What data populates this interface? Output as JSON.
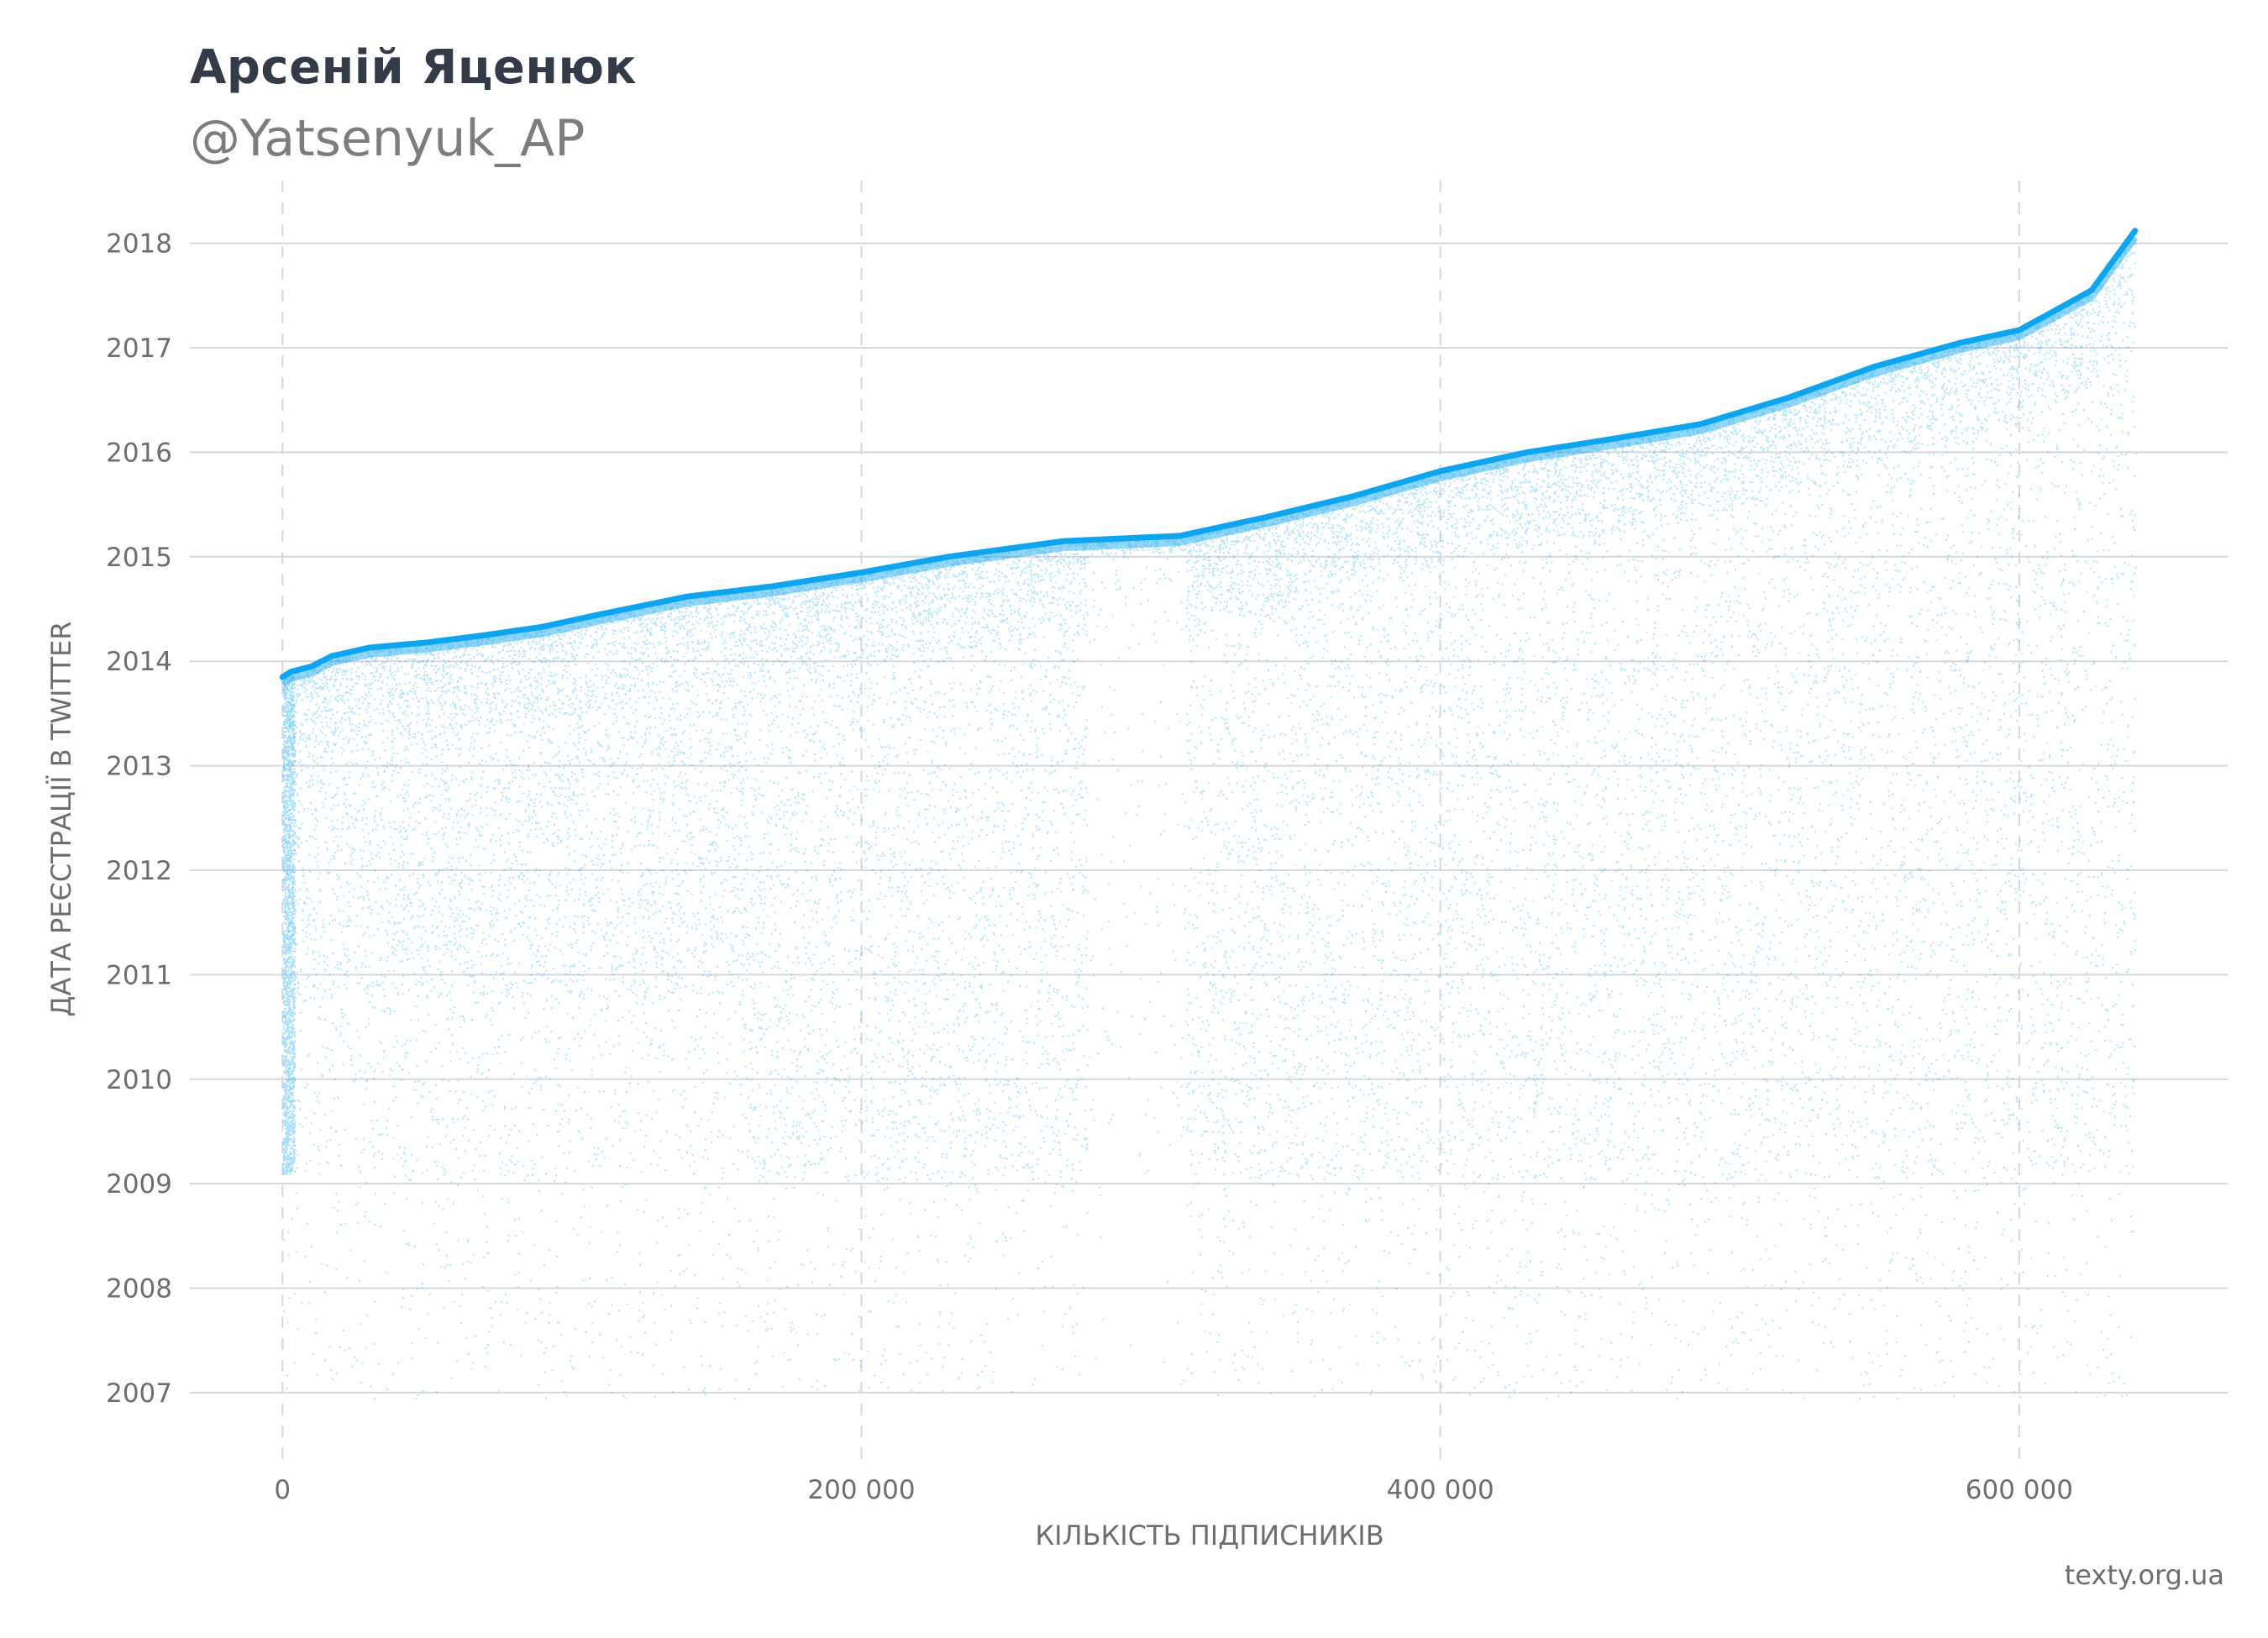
{
  "header": {
    "title": "Арсеній Яценюк",
    "handle": "@Yatsenyuk_AP"
  },
  "footer": {
    "source": "texty.org.ua"
  },
  "colors": {
    "points": "#0ea5f0",
    "title": "#333b48",
    "subtitle": "#7d7d7d",
    "text": "#6e6e6e",
    "grid": "#d5d8dc"
  },
  "chart_data": {
    "type": "scatter",
    "title": "Арсеній Яценюк",
    "subtitle": "@Yatsenyuk_AP",
    "xlabel": "КІЛЬКІСТЬ ПІДПИСНИКІВ",
    "ylabel": "ДАТА РЕЄСТРАЦІЇ В TWITTER",
    "x_ticks": [
      {
        "value": 0,
        "label": "0"
      },
      {
        "value": 200000,
        "label": "200 000"
      },
      {
        "value": 400000,
        "label": "400 000"
      },
      {
        "value": 600000,
        "label": "600 000"
      }
    ],
    "y_ticks": [
      {
        "value": 2007,
        "label": "2007"
      },
      {
        "value": 2008,
        "label": "2008"
      },
      {
        "value": 2009,
        "label": "2009"
      },
      {
        "value": 2010,
        "label": "2010"
      },
      {
        "value": 2011,
        "label": "2011"
      },
      {
        "value": 2012,
        "label": "2012"
      },
      {
        "value": 2013,
        "label": "2013"
      },
      {
        "value": 2014,
        "label": "2014"
      },
      {
        "value": 2015,
        "label": "2015"
      },
      {
        "value": 2016,
        "label": "2016"
      },
      {
        "value": 2017,
        "label": "2017"
      },
      {
        "value": 2018,
        "label": "2018"
      }
    ],
    "xlim": [
      -32000,
      672000
    ],
    "ylim": [
      2006.3,
      2018.6
    ],
    "grid": {
      "x": "dashed",
      "y": "solid"
    },
    "total_followers": 640000,
    "upper_envelope": [
      {
        "x": 0,
        "y": 2013.85
      },
      {
        "x": 3000,
        "y": 2013.9
      },
      {
        "x": 10000,
        "y": 2013.95
      },
      {
        "x": 17000,
        "y": 2014.05
      },
      {
        "x": 30000,
        "y": 2014.13
      },
      {
        "x": 50000,
        "y": 2014.18
      },
      {
        "x": 70000,
        "y": 2014.25
      },
      {
        "x": 90000,
        "y": 2014.33
      },
      {
        "x": 110000,
        "y": 2014.45
      },
      {
        "x": 140000,
        "y": 2014.62
      },
      {
        "x": 170000,
        "y": 2014.72
      },
      {
        "x": 200000,
        "y": 2014.85
      },
      {
        "x": 230000,
        "y": 2015.0
      },
      {
        "x": 270000,
        "y": 2015.15
      },
      {
        "x": 310000,
        "y": 2015.2
      },
      {
        "x": 340000,
        "y": 2015.38
      },
      {
        "x": 370000,
        "y": 2015.58
      },
      {
        "x": 400000,
        "y": 2015.82
      },
      {
        "x": 430000,
        "y": 2016.0
      },
      {
        "x": 460000,
        "y": 2016.13
      },
      {
        "x": 490000,
        "y": 2016.27
      },
      {
        "x": 520000,
        "y": 2016.52
      },
      {
        "x": 550000,
        "y": 2016.82
      },
      {
        "x": 580000,
        "y": 2017.05
      },
      {
        "x": 600000,
        "y": 2017.17
      },
      {
        "x": 610000,
        "y": 2017.32
      },
      {
        "x": 625000,
        "y": 2017.55
      },
      {
        "x": 640000,
        "y": 2018.12
      }
    ],
    "sparse_bands": [
      {
        "x_start": 278000,
        "x_end": 312000
      }
    ]
  }
}
